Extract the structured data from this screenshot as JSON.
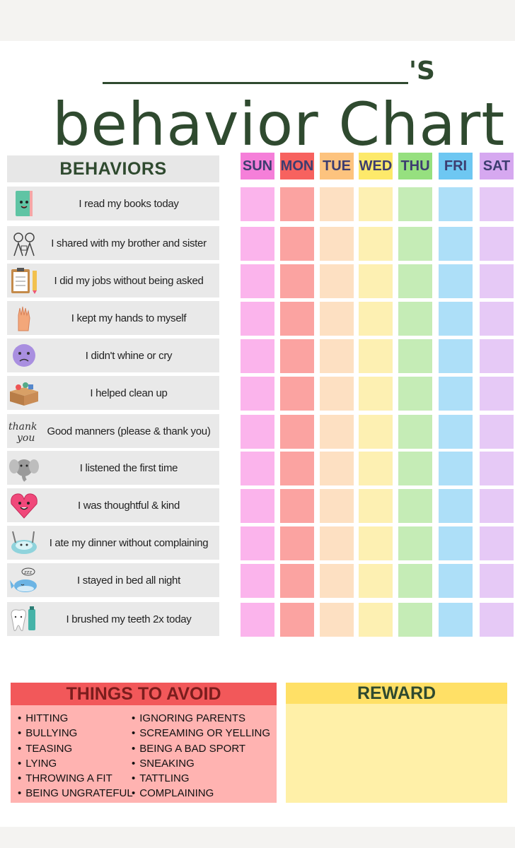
{
  "header": {
    "name_suffix": "'S",
    "title": "behavior Chart"
  },
  "behaviors_header": "BEHAVIORS",
  "days": [
    {
      "label": "SUN",
      "head_color": "#f57fd9",
      "cell_color": "#fbb4ec"
    },
    {
      "label": "MON",
      "head_color": "#f7625f",
      "cell_color": "#fba3a1"
    },
    {
      "label": "TUE",
      "head_color": "#fdc37e",
      "cell_color": "#fde0c2"
    },
    {
      "label": "WED",
      "head_color": "#fde96a",
      "cell_color": "#fdf0b2"
    },
    {
      "label": "THU",
      "head_color": "#96e07f",
      "cell_color": "#c5ecb6"
    },
    {
      "label": "FRI",
      "head_color": "#6ec7f2",
      "cell_color": "#addff8"
    },
    {
      "label": "SAT",
      "head_color": "#d6a8f0",
      "cell_color": "#e6c9f6"
    }
  ],
  "behaviors": [
    {
      "label": "I read my books today",
      "icon": "book-icon"
    },
    {
      "label": "I shared with my brother and sister",
      "icon": "kids-sharing-icon"
    },
    {
      "label": "I did my jobs without being asked",
      "icon": "clipboard-pencil-icon"
    },
    {
      "label": "I kept my hands to myself",
      "icon": "hand-icon"
    },
    {
      "label": "I didn't whine or cry",
      "icon": "sad-face-icon"
    },
    {
      "label": "I helped clean up",
      "icon": "toy-box-icon"
    },
    {
      "label": "Good manners (please & thank you)",
      "icon": "thank-you-icon"
    },
    {
      "label": "I listened the first time",
      "icon": "elephant-icon"
    },
    {
      "label": "I was thoughtful & kind",
      "icon": "heart-icon"
    },
    {
      "label": "I ate my dinner without complaining",
      "icon": "plate-icon"
    },
    {
      "label": "I stayed in bed all night",
      "icon": "sleeping-whale-icon"
    },
    {
      "label": "I brushed my teeth 2x today",
      "icon": "tooth-toothpaste-icon"
    }
  ],
  "avoid": {
    "title": "THINGS TO AVOID",
    "col1": [
      "HITTING",
      "BULLYING",
      "TEASING",
      "LYING",
      "THROWING A FIT",
      "BEING UNGRATEFUL"
    ],
    "col2": [
      "IGNORING PARENTS",
      "SCREAMING OR YELLING",
      "BEING A BAD SPORT",
      "SNEAKING",
      "TATTLING",
      "COMPLAINING"
    ]
  },
  "reward": {
    "title": "REWARD"
  }
}
